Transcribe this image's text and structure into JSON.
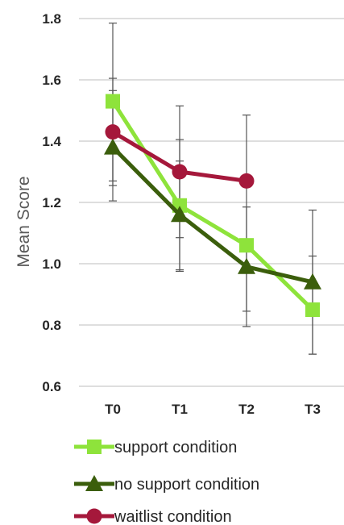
{
  "chart_data": {
    "type": "line",
    "title": "",
    "xlabel": "",
    "ylabel": "Mean Score",
    "categories": [
      "T0",
      "T1",
      "T2",
      "T3"
    ],
    "ylim": [
      0.6,
      1.8
    ],
    "yticks": [
      "0.6",
      "0.8",
      "1.0",
      "1.2",
      "1.4",
      "1.6",
      "1.8"
    ],
    "grid": "horizontal",
    "legend_position": "bottom",
    "series": [
      {
        "name": "support condition",
        "color": "#8ee33b",
        "marker": "square",
        "values": [
          1.53,
          1.19,
          1.06,
          0.85
        ],
        "error_low": [
          1.27,
          0.98,
          0.845,
          0.705
        ],
        "error_high": [
          1.785,
          1.405,
          1.275,
          1.025
        ]
      },
      {
        "name": "no support condition",
        "color": "#3b5e0c",
        "marker": "triangle",
        "values": [
          1.38,
          1.16,
          0.99,
          0.94
        ],
        "error_low": [
          1.255,
          0.975,
          0.795,
          0.705
        ],
        "error_high": [
          1.565,
          1.335,
          1.185,
          1.175
        ]
      },
      {
        "name": "waitlist condition",
        "color": "#a5183b",
        "marker": "circle",
        "values": [
          1.43,
          1.3,
          1.27,
          null
        ],
        "error_low": [
          1.205,
          1.085,
          null,
          null
        ],
        "error_high": [
          1.605,
          1.515,
          1.485,
          null
        ]
      }
    ]
  }
}
